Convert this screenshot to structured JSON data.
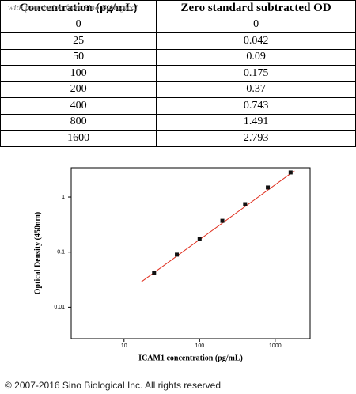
{
  "table": {
    "header": [
      "Concentration (pg/mL)",
      "Zero standard subtracted OD"
    ],
    "rows": [
      [
        0,
        0
      ],
      [
        25,
        0.042
      ],
      [
        50,
        0.09
      ],
      [
        100,
        0.175
      ],
      [
        200,
        0.37
      ],
      [
        400,
        0.743
      ],
      [
        800,
        1.491
      ],
      [
        1600,
        2.793
      ]
    ]
  },
  "watermark": "with permission from Sino Biological",
  "chart_data": {
    "type": "scatter",
    "x_label": "ICAM1 concentration (pg/mL)",
    "y_label": "Optical Density (450nm)",
    "x_log": true,
    "y_log": true,
    "xlim": [
      2,
      2900
    ],
    "ylim": [
      0.0027,
      3.4
    ],
    "xticks": [
      10,
      100,
      1000
    ],
    "yticks": [
      0.01,
      0.1,
      1
    ],
    "x": [
      25,
      50,
      100,
      200,
      400,
      800,
      1600
    ],
    "series": [
      {
        "color": "#111111",
        "values": [
          0.042,
          0.09,
          0.175,
          0.37,
          0.743,
          1.491,
          2.793
        ]
      }
    ],
    "fit": {
      "color": "#e03020",
      "x": [
        17,
        1800
      ],
      "values": [
        0.029,
        3.0
      ]
    }
  },
  "footer": "© 2007-2016 Sino Biological Inc. All rights reserved"
}
